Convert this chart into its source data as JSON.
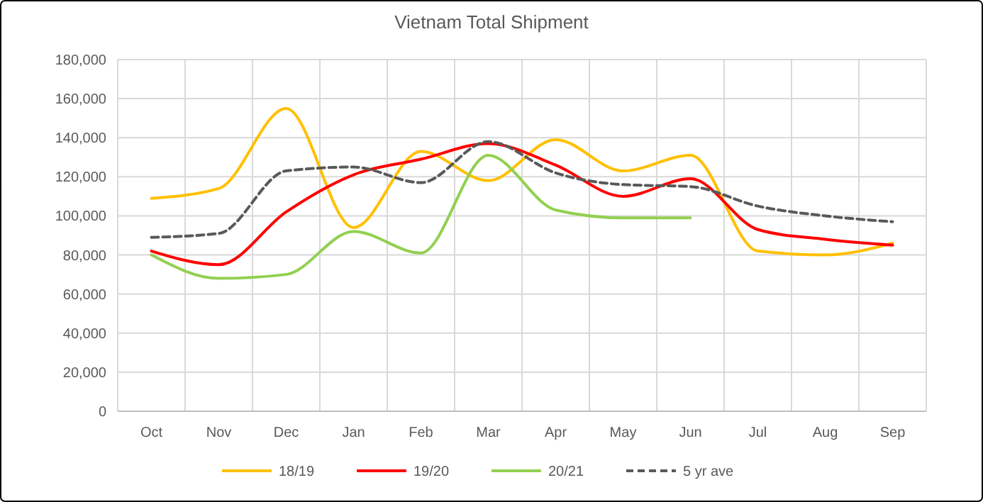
{
  "chart_data": {
    "type": "line",
    "title": "Vietnam Total Shipment",
    "categories": [
      "Oct",
      "Nov",
      "Dec",
      "Jan",
      "Feb",
      "Mar",
      "Apr",
      "May",
      "Jun",
      "Jul",
      "Aug",
      "Sep"
    ],
    "series": [
      {
        "name": "18/19",
        "color": "#ffc000",
        "values": [
          109000,
          114000,
          155000,
          94000,
          133000,
          118000,
          139000,
          123000,
          131000,
          82000,
          80000,
          86000
        ]
      },
      {
        "name": "19/20",
        "color": "#ff0000",
        "values": [
          82000,
          75000,
          102000,
          121000,
          129000,
          137000,
          126000,
          110000,
          119000,
          93000,
          88000,
          85000
        ]
      },
      {
        "name": "20/21",
        "color": "#92d050",
        "values": [
          80000,
          68000,
          70000,
          92000,
          81000,
          131000,
          103000,
          99000,
          99000,
          null,
          null,
          null
        ]
      },
      {
        "name": "5 yr ave",
        "color": "#595959",
        "line_style": "dashed",
        "values": [
          89000,
          91000,
          123000,
          125000,
          117000,
          138000,
          122000,
          116000,
          115000,
          105000,
          100000,
          97000
        ]
      }
    ],
    "ylim": [
      0,
      180000
    ],
    "yticks": [
      {
        "value": 0,
        "label": "0"
      },
      {
        "value": 20000,
        "label": "20,000"
      },
      {
        "value": 40000,
        "label": "40,000"
      },
      {
        "value": 60000,
        "label": "60,000"
      },
      {
        "value": 80000,
        "label": "80,000"
      },
      {
        "value": 100000,
        "label": "100,000"
      },
      {
        "value": 120000,
        "label": "120,000"
      },
      {
        "value": 140000,
        "label": "140,000"
      },
      {
        "value": 160000,
        "label": "160,000"
      },
      {
        "value": 180000,
        "label": "180,000"
      }
    ],
    "grid": true,
    "legend": "bottom",
    "line_style": "solid"
  }
}
